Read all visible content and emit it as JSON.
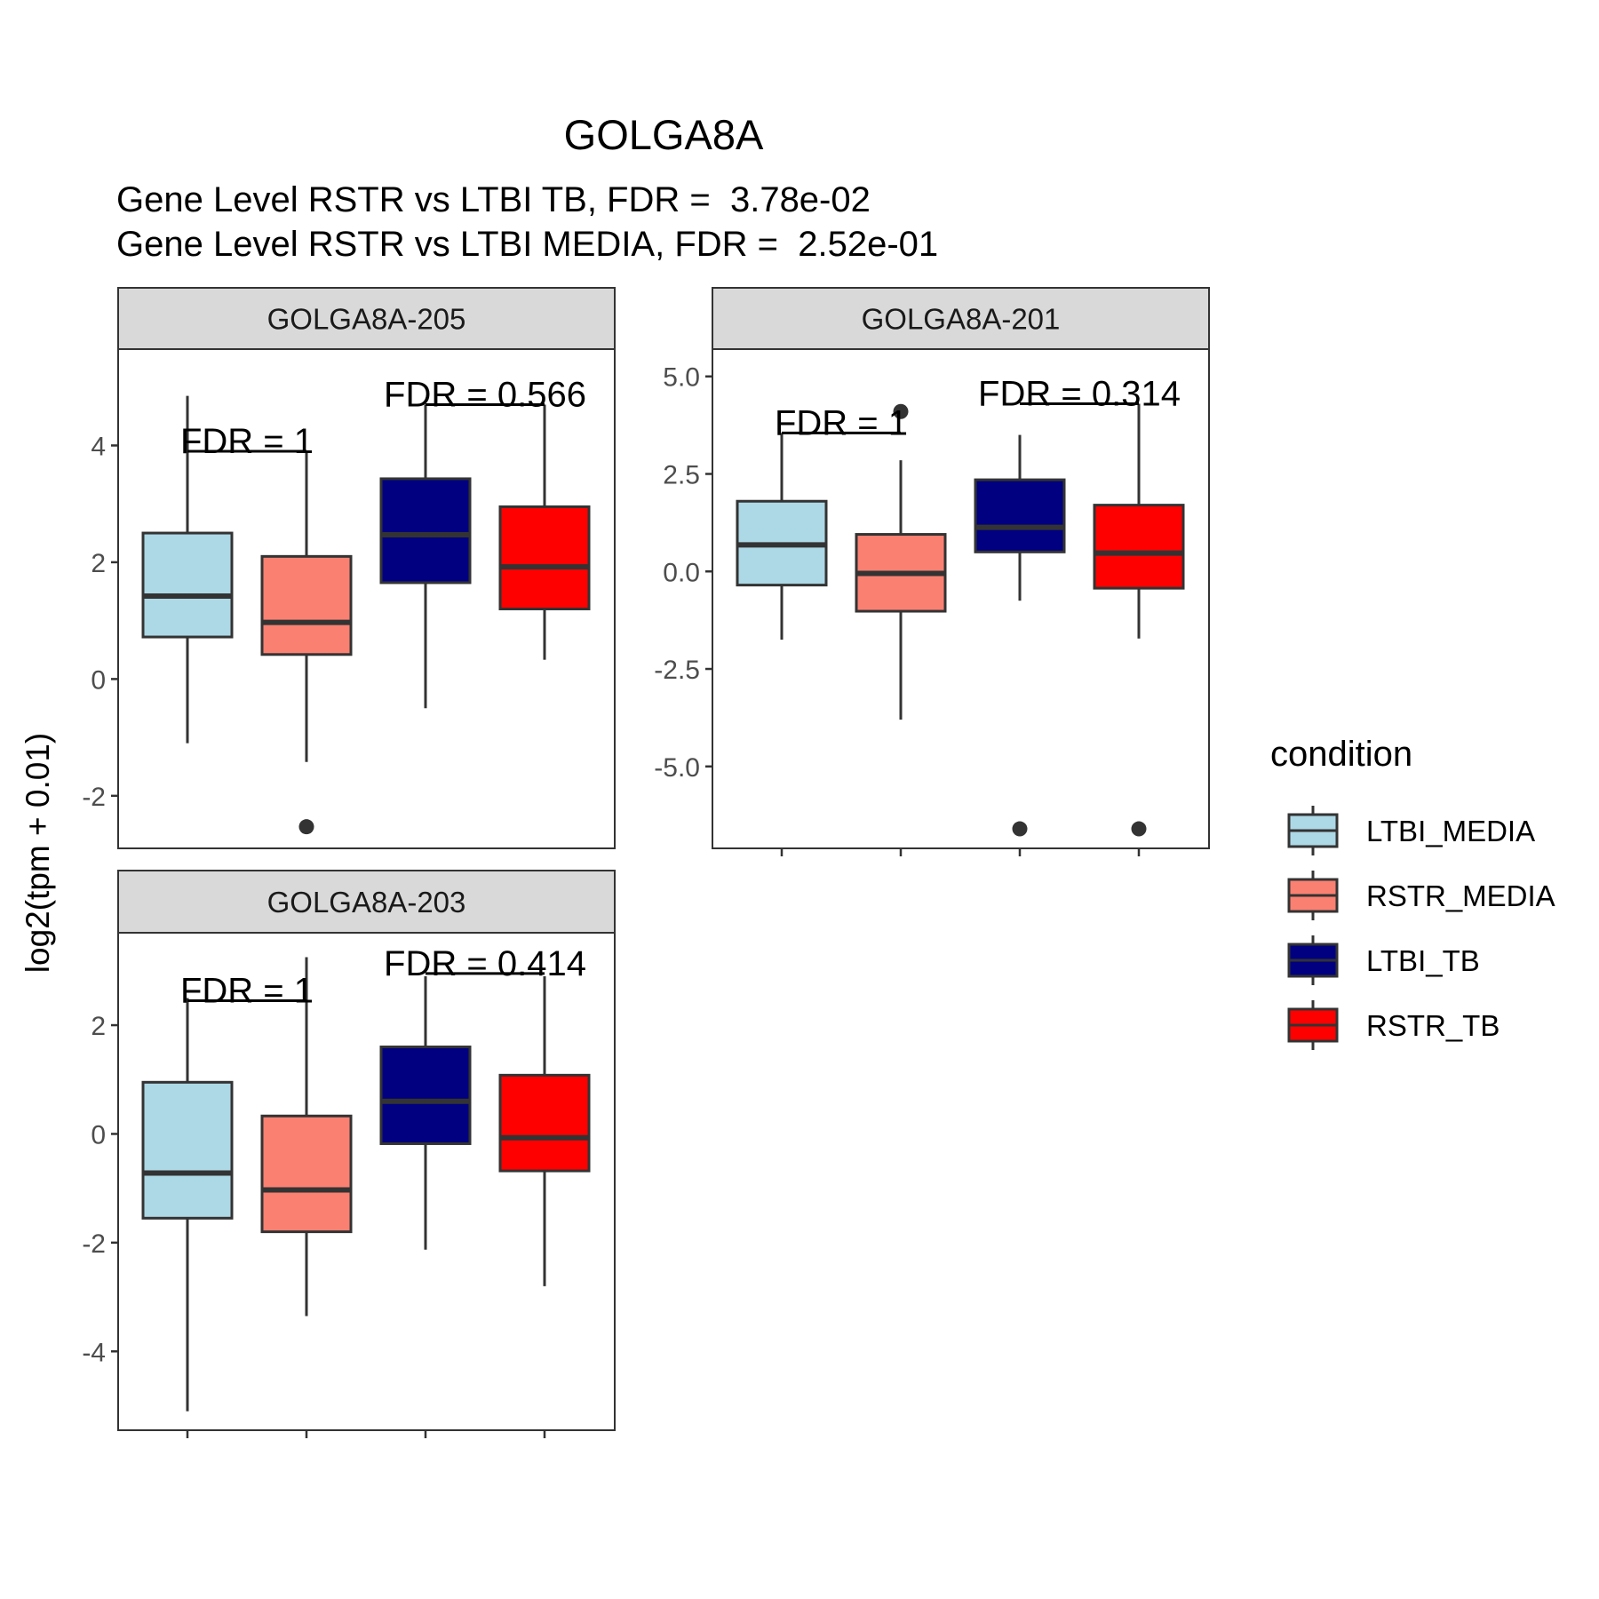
{
  "chart_data": {
    "type": "box",
    "title": "GOLGA8A",
    "subtitle_lines": [
      "Gene Level RSTR vs LTBI TB, FDR =  3.78e-02",
      "Gene Level RSTR vs LTBI MEDIA, FDR =  2.52e-01"
    ],
    "ylabel": "log2(tpm + 0.01)",
    "legend": {
      "title": "condition",
      "placement": "right",
      "entries": [
        {
          "label": "LTBI_MEDIA",
          "color": "#ADD8E6"
        },
        {
          "label": "RSTR_MEDIA",
          "color": "#FA8072"
        },
        {
          "label": "LTBI_TB",
          "color": "#000080"
        },
        {
          "label": "RSTR_TB",
          "color": "#FF0000"
        }
      ]
    },
    "grid": false,
    "panels": [
      {
        "strip": "GOLGA8A-205",
        "ylim": [
          -2.9,
          5.65
        ],
        "yticks": [
          -2,
          0,
          2,
          4
        ],
        "ytick_labels": [
          "-2",
          "0",
          "2",
          "4"
        ],
        "boxes": [
          {
            "group": "LTBI_MEDIA",
            "whisker_low": -1.1,
            "q1": 0.72,
            "median": 1.42,
            "q3": 2.5,
            "whisker_high": 4.85,
            "outliers": []
          },
          {
            "group": "RSTR_MEDIA",
            "whisker_low": -1.42,
            "q1": 0.42,
            "median": 0.97,
            "q3": 2.1,
            "whisker_high": 3.9,
            "outliers": [
              -2.53
            ]
          },
          {
            "group": "LTBI_TB",
            "whisker_low": -0.5,
            "q1": 1.65,
            "median": 2.47,
            "q3": 3.43,
            "whisker_high": 4.7,
            "outliers": []
          },
          {
            "group": "RSTR_TB",
            "whisker_low": 0.33,
            "q1": 1.2,
            "median": 1.92,
            "q3": 2.95,
            "whisker_high": 4.7,
            "outliers": []
          }
        ],
        "brackets": [
          {
            "from": 0,
            "to": 1,
            "y": 3.9,
            "label": "FDR =  1"
          },
          {
            "from": 2,
            "to": 3,
            "y": 4.7,
            "label": "FDR =  0.566"
          }
        ]
      },
      {
        "strip": "GOLGA8A-201",
        "ylim": [
          -7.1,
          5.7
        ],
        "yticks": [
          -5.0,
          -2.5,
          0.0,
          2.5,
          5.0
        ],
        "ytick_labels": [
          "-5.0",
          "-2.5",
          "0.0",
          "2.5",
          "5.0"
        ],
        "boxes": [
          {
            "group": "LTBI_MEDIA",
            "whisker_low": -1.75,
            "q1": -0.35,
            "median": 0.68,
            "q3": 1.8,
            "whisker_high": 3.55,
            "outliers": []
          },
          {
            "group": "RSTR_MEDIA",
            "whisker_low": -3.8,
            "q1": -1.02,
            "median": -0.05,
            "q3": 0.95,
            "whisker_high": 2.85,
            "outliers": [
              4.1
            ]
          },
          {
            "group": "LTBI_TB",
            "whisker_low": -0.75,
            "q1": 0.5,
            "median": 1.13,
            "q3": 2.35,
            "whisker_high": 3.5,
            "outliers": [
              -6.6
            ]
          },
          {
            "group": "RSTR_TB",
            "whisker_low": -1.72,
            "q1": -0.43,
            "median": 0.47,
            "q3": 1.7,
            "whisker_high": 4.3,
            "outliers": [
              -6.6
            ]
          }
        ],
        "brackets": [
          {
            "from": 0,
            "to": 1,
            "y": 3.55,
            "label": "FDR =  1"
          },
          {
            "from": 2,
            "to": 3,
            "y": 4.3,
            "label": "FDR =  0.314"
          }
        ]
      },
      {
        "strip": "GOLGA8A-203",
        "ylim": [
          -5.45,
          3.7
        ],
        "yticks": [
          -4,
          -2,
          0,
          2
        ],
        "ytick_labels": [
          "-4",
          "-2",
          "0",
          "2"
        ],
        "boxes": [
          {
            "group": "LTBI_MEDIA",
            "whisker_low": -5.1,
            "q1": -1.55,
            "median": -0.72,
            "q3": 0.95,
            "whisker_high": 2.5,
            "outliers": []
          },
          {
            "group": "RSTR_MEDIA",
            "whisker_low": -3.35,
            "q1": -1.8,
            "median": -1.03,
            "q3": 0.33,
            "whisker_high": 3.25,
            "outliers": []
          },
          {
            "group": "LTBI_TB",
            "whisker_low": -2.13,
            "q1": -0.18,
            "median": 0.6,
            "q3": 1.6,
            "whisker_high": 2.9,
            "outliers": []
          },
          {
            "group": "RSTR_TB",
            "whisker_low": -2.8,
            "q1": -0.68,
            "median": -0.07,
            "q3": 1.08,
            "whisker_high": 2.9,
            "outliers": []
          }
        ],
        "brackets": [
          {
            "from": 0,
            "to": 1,
            "y": 2.45,
            "label": "FDR =  1"
          },
          {
            "from": 2,
            "to": 3,
            "y": 2.95,
            "label": "FDR =  0.414"
          }
        ]
      }
    ]
  }
}
